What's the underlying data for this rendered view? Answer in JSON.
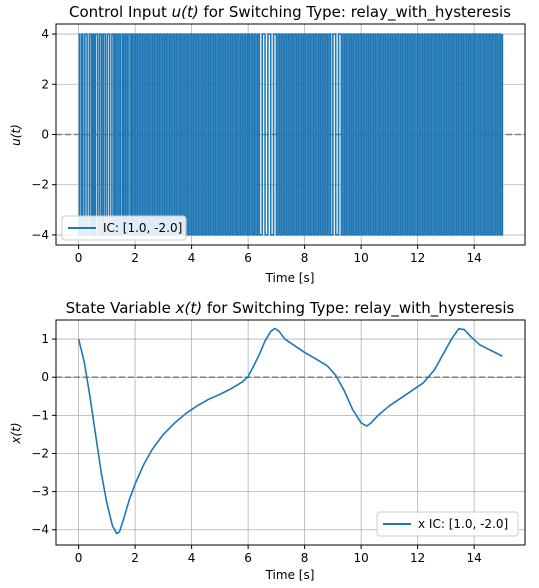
{
  "chart_data": [
    {
      "type": "line",
      "title_prefix": "Control Input ",
      "title_var": "u(t)",
      "title_suffix": " for Switching Type: relay_with_hysteresis",
      "xlabel": "Time [s]",
      "ylabel": "u(t)",
      "xlim": [
        -0.8,
        15.8
      ],
      "ylim": [
        -4.4,
        4.4
      ],
      "xticks": [
        0,
        2,
        4,
        6,
        8,
        10,
        12,
        14
      ],
      "yticks": [
        -4,
        -2,
        0,
        2,
        4
      ],
      "grid": true,
      "legend_position": "lower-left",
      "reference_line": {
        "y": 0,
        "style": "dashed",
        "color": "#808080"
      },
      "series": [
        {
          "name": "IC: [1.0, -2.0]",
          "color": "#1f77b4",
          "levels": [
            4,
            -4
          ],
          "initial_level": 4,
          "switch_times": [
            0.03,
            0.1,
            0.15,
            0.22,
            0.3,
            0.38,
            0.45,
            0.5,
            0.55,
            0.6,
            0.68,
            0.75,
            0.82,
            0.88,
            0.95,
            1.02,
            1.1,
            1.18,
            1.25,
            1.3,
            1.36,
            1.42,
            1.48,
            1.55,
            1.6,
            1.66,
            1.72,
            1.78,
            1.85,
            1.9,
            1.96,
            2.02,
            2.08,
            2.14,
            2.2,
            2.26,
            2.32,
            2.38,
            2.44,
            2.5,
            2.56,
            2.62,
            2.68,
            2.74,
            2.8,
            2.86,
            2.92,
            2.98,
            3.04,
            3.1,
            3.16,
            3.22,
            3.28,
            3.34,
            3.4,
            3.46,
            3.52,
            3.58,
            3.64,
            3.7,
            3.76,
            3.82,
            3.88,
            3.94,
            4.0,
            4.06,
            4.12,
            4.18,
            4.24,
            4.3,
            4.36,
            4.42,
            4.48,
            4.54,
            4.6,
            4.66,
            4.72,
            4.78,
            4.84,
            4.9,
            4.96,
            5.02,
            5.08,
            5.14,
            5.2,
            5.26,
            5.32,
            5.38,
            5.44,
            5.5,
            5.56,
            5.62,
            5.68,
            5.74,
            5.8,
            5.86,
            5.92,
            5.98,
            6.04,
            6.1,
            6.16,
            6.22,
            6.28,
            6.34,
            6.4,
            6.5,
            6.6,
            6.7,
            6.8,
            6.9,
            7.0,
            7.06,
            7.12,
            7.18,
            7.24,
            7.3,
            7.36,
            7.42,
            7.48,
            7.54,
            7.6,
            7.66,
            7.72,
            7.78,
            7.84,
            7.9,
            7.96,
            8.02,
            8.08,
            8.14,
            8.2,
            8.26,
            8.32,
            8.38,
            8.44,
            8.5,
            8.56,
            8.62,
            8.68,
            8.74,
            8.8,
            8.86,
            8.92,
            9.0,
            9.1,
            9.2,
            9.3,
            9.36,
            9.42,
            9.48,
            9.54,
            9.6,
            9.66,
            9.72,
            9.78,
            9.84,
            9.9,
            9.96,
            10.02,
            10.08,
            10.14,
            10.2,
            10.26,
            10.32,
            10.38,
            10.44,
            10.5,
            10.56,
            10.62,
            10.68,
            10.74,
            10.8,
            10.86,
            10.92,
            10.98,
            11.04,
            11.1,
            11.16,
            11.22,
            11.28,
            11.34,
            11.4,
            11.46,
            11.52,
            11.58,
            11.64,
            11.7,
            11.76,
            11.82,
            11.88,
            11.94,
            12.0,
            12.06,
            12.12,
            12.18,
            12.24,
            12.3,
            12.36,
            12.42,
            12.48,
            12.54,
            12.6,
            12.66,
            12.72,
            12.78,
            12.84,
            12.9,
            12.96,
            13.02,
            13.08,
            13.14,
            13.2,
            13.26,
            13.32,
            13.38,
            13.44,
            13.5,
            13.56,
            13.62,
            13.68,
            13.74,
            13.8,
            13.86,
            13.92,
            13.98,
            14.04,
            14.1,
            14.16,
            14.22,
            14.28,
            14.34,
            14.4,
            14.46,
            14.52,
            14.58,
            14.64,
            14.7,
            14.76,
            14.82,
            14.88,
            14.94,
            15.0
          ]
        }
      ]
    },
    {
      "type": "line",
      "title_prefix": "State Variable ",
      "title_var": "x(t)",
      "title_suffix": " for Switching Type: relay_with_hysteresis",
      "xlabel": "Time [s]",
      "ylabel": "x(t)",
      "xlim": [
        -0.8,
        15.8
      ],
      "ylim": [
        -4.4,
        1.5
      ],
      "xticks": [
        0,
        2,
        4,
        6,
        8,
        10,
        12,
        14
      ],
      "yticks": [
        -4,
        -3,
        -2,
        -1,
        0,
        1
      ],
      "grid": true,
      "legend_position": "lower-right",
      "reference_line": {
        "y": 0,
        "style": "dashed",
        "color": "#808080"
      },
      "series": [
        {
          "name": "x IC: [1.0, -2.0]",
          "color": "#1f77b4",
          "x": [
            0,
            0.2,
            0.4,
            0.6,
            0.8,
            1.0,
            1.2,
            1.35,
            1.45,
            1.6,
            1.8,
            2.0,
            2.3,
            2.6,
            3.0,
            3.4,
            3.8,
            4.2,
            4.6,
            5.0,
            5.4,
            5.8,
            6.0,
            6.2,
            6.4,
            6.6,
            6.8,
            6.95,
            7.1,
            7.3,
            7.6,
            8.0,
            8.4,
            8.8,
            9.1,
            9.4,
            9.7,
            10.0,
            10.2,
            10.35,
            10.6,
            11.0,
            11.4,
            11.8,
            12.2,
            12.6,
            12.9,
            13.2,
            13.45,
            13.65,
            13.9,
            14.2,
            14.6,
            15.0
          ],
          "y": [
            1.0,
            0.4,
            -0.5,
            -1.5,
            -2.5,
            -3.3,
            -3.9,
            -4.1,
            -4.05,
            -3.7,
            -3.2,
            -2.8,
            -2.3,
            -1.9,
            -1.5,
            -1.2,
            -0.95,
            -0.75,
            -0.58,
            -0.45,
            -0.3,
            -0.12,
            0.02,
            0.3,
            0.6,
            0.95,
            1.2,
            1.28,
            1.2,
            1.0,
            0.85,
            0.65,
            0.48,
            0.3,
            0.05,
            -0.35,
            -0.85,
            -1.2,
            -1.28,
            -1.2,
            -1.0,
            -0.75,
            -0.55,
            -0.35,
            -0.15,
            0.2,
            0.6,
            1.0,
            1.27,
            1.25,
            1.05,
            0.85,
            0.7,
            0.55
          ]
        }
      ]
    }
  ]
}
